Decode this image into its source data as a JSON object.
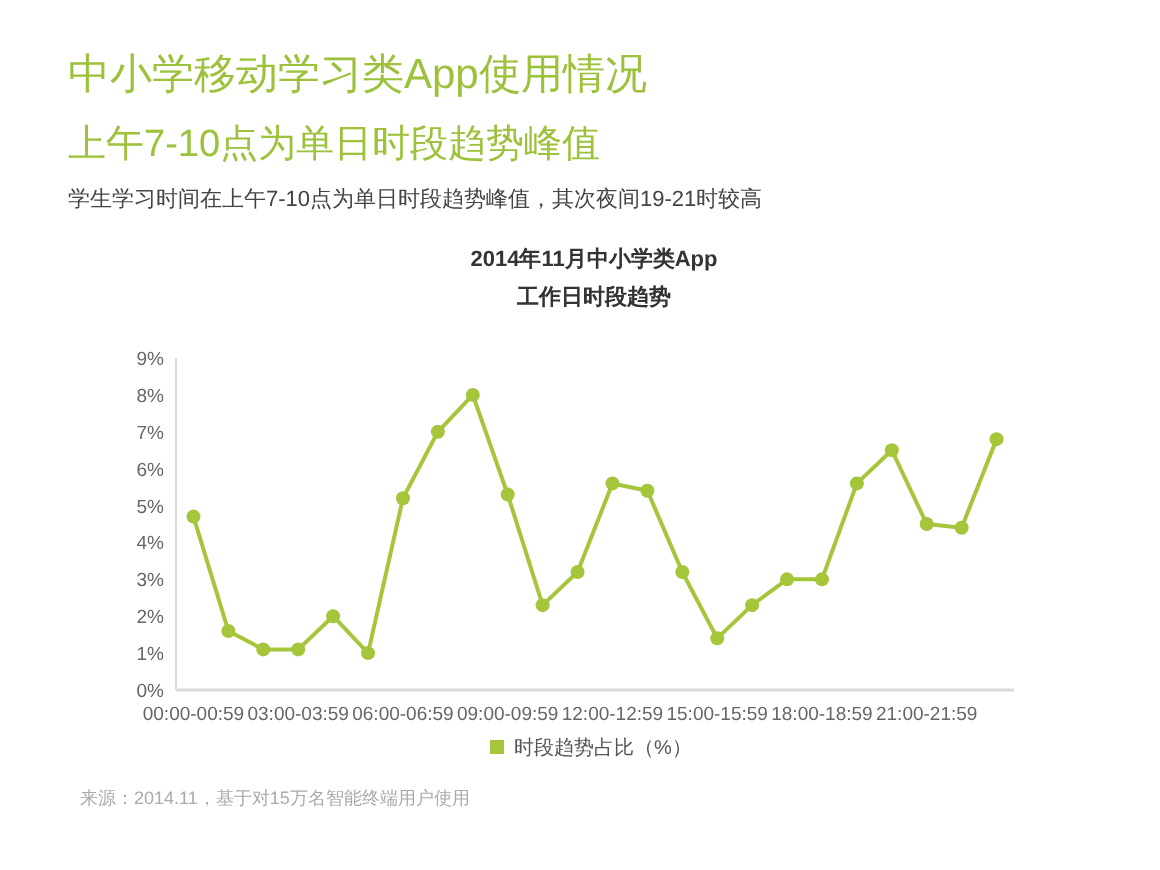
{
  "chart_data": {
    "type": "line",
    "title": "中小学移动学习类App使用情况",
    "subtitle": "上午7-10点为单日时段趋势峰值",
    "annotations": [
      "学生学习时间在上午7-10点为单日时段趋势峰值，其次夜间19-21时较高",
      "2014年11月中小学类App",
      "工作日时段趋势",
      "来源：2014.11，基于对15万名智能终端用户使用"
    ],
    "categories": [
      "00:00-00:59",
      null,
      null,
      "03:00-03:59",
      null,
      null,
      "06:00-06:59",
      null,
      null,
      "09:00-09:59",
      null,
      null,
      "12:00-12:59",
      null,
      null,
      "15:00-15:59",
      null,
      null,
      "18:00-18:59",
      null,
      null,
      "21:00-21:59",
      null,
      null
    ],
    "series": [
      {
        "name": "时段趋势占比（%）",
        "color": "#a5c63b",
        "values": [
          4.7,
          1.6,
          1.1,
          1.1,
          2.0,
          1.0,
          5.2,
          7.0,
          8.0,
          5.3,
          2.3,
          3.2,
          5.6,
          5.4,
          3.2,
          1.4,
          2.3,
          3.0,
          3.0,
          5.6,
          6.5,
          4.5,
          4.4,
          6.8
        ]
      }
    ],
    "ylim": [
      0,
      9
    ],
    "yticks": [
      {
        "value": 0,
        "label": "0%"
      },
      {
        "value": 1,
        "label": "1%"
      },
      {
        "value": 2,
        "label": "2%"
      },
      {
        "value": 3,
        "label": "3%"
      },
      {
        "value": 4,
        "label": "4%"
      },
      {
        "value": 5,
        "label": "5%"
      },
      {
        "value": 6,
        "label": "6%"
      },
      {
        "value": 7,
        "label": "7%"
      },
      {
        "value": 8,
        "label": "8%"
      },
      {
        "value": 9,
        "label": "9%"
      }
    ],
    "legend": "bottom",
    "marker": "circle",
    "line_style": "solid"
  }
}
